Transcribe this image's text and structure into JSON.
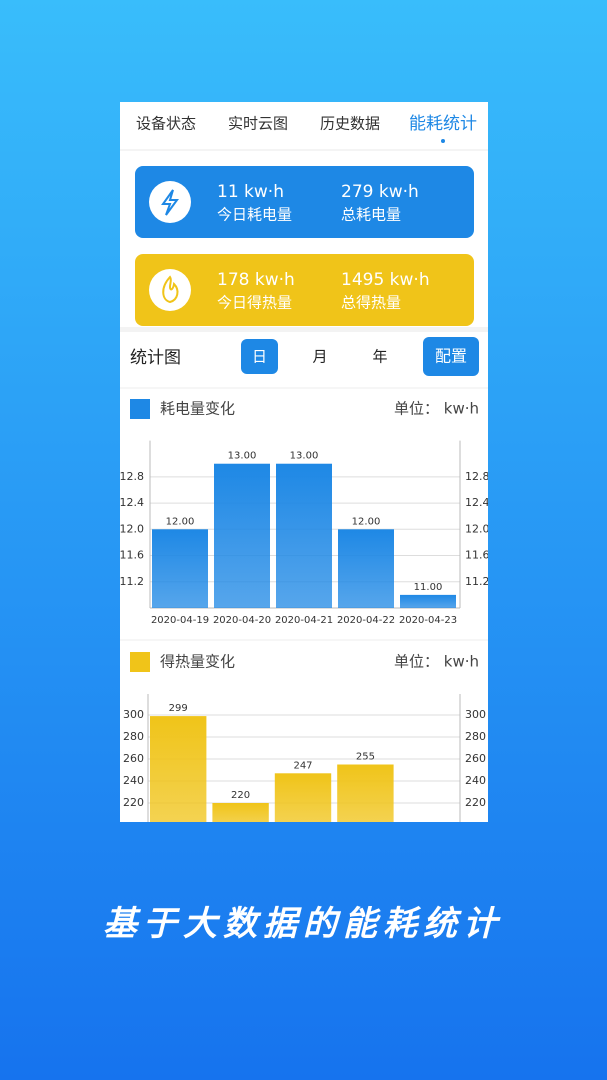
{
  "tabs": [
    "设备状态",
    "实时云图",
    "历史数据",
    "能耗统计"
  ],
  "cards": [
    {
      "value": "11 kw·h",
      "label": "今日耗电量"
    },
    {
      "value": "279 kw·h",
      "label": "总耗电量"
    },
    {
      "value": "178 kw·h",
      "label": "今日得热量"
    },
    {
      "value": "1495 kw·h",
      "label": "总得热量"
    }
  ],
  "stats": {
    "title": "统计图",
    "periods": [
      "日",
      "月",
      "年"
    ],
    "config": "配置"
  },
  "chart_data": [
    {
      "type": "bar",
      "title": "耗电量变化",
      "unit": "单位：  kw·h",
      "color": "#1e88e5",
      "categories": [
        "2020-04-19",
        "2020-04-20",
        "2020-04-21",
        "2020-04-22",
        "2020-04-23"
      ],
      "values": [
        12,
        13,
        13,
        12,
        11
      ],
      "value_labels": [
        "12.00",
        "13.00",
        "13.00",
        "12.00",
        "11.00"
      ],
      "ylim": [
        10.8,
        13.2
      ],
      "yticks": [
        11.2,
        11.6,
        {
          "value": 12,
          "label": "12.0"
        },
        12.4,
        12.8
      ],
      "grid": true
    },
    {
      "type": "bar",
      "title": "得热量变化",
      "unit": "单位：  kw·h",
      "color": "#f0c419",
      "values": [
        299,
        220,
        247,
        255
      ],
      "ylim": [
        200,
        310
      ],
      "yticks": [
        220,
        240,
        260,
        280,
        300
      ],
      "grid": true
    }
  ],
  "slogan": "基于大数据的能耗统计"
}
